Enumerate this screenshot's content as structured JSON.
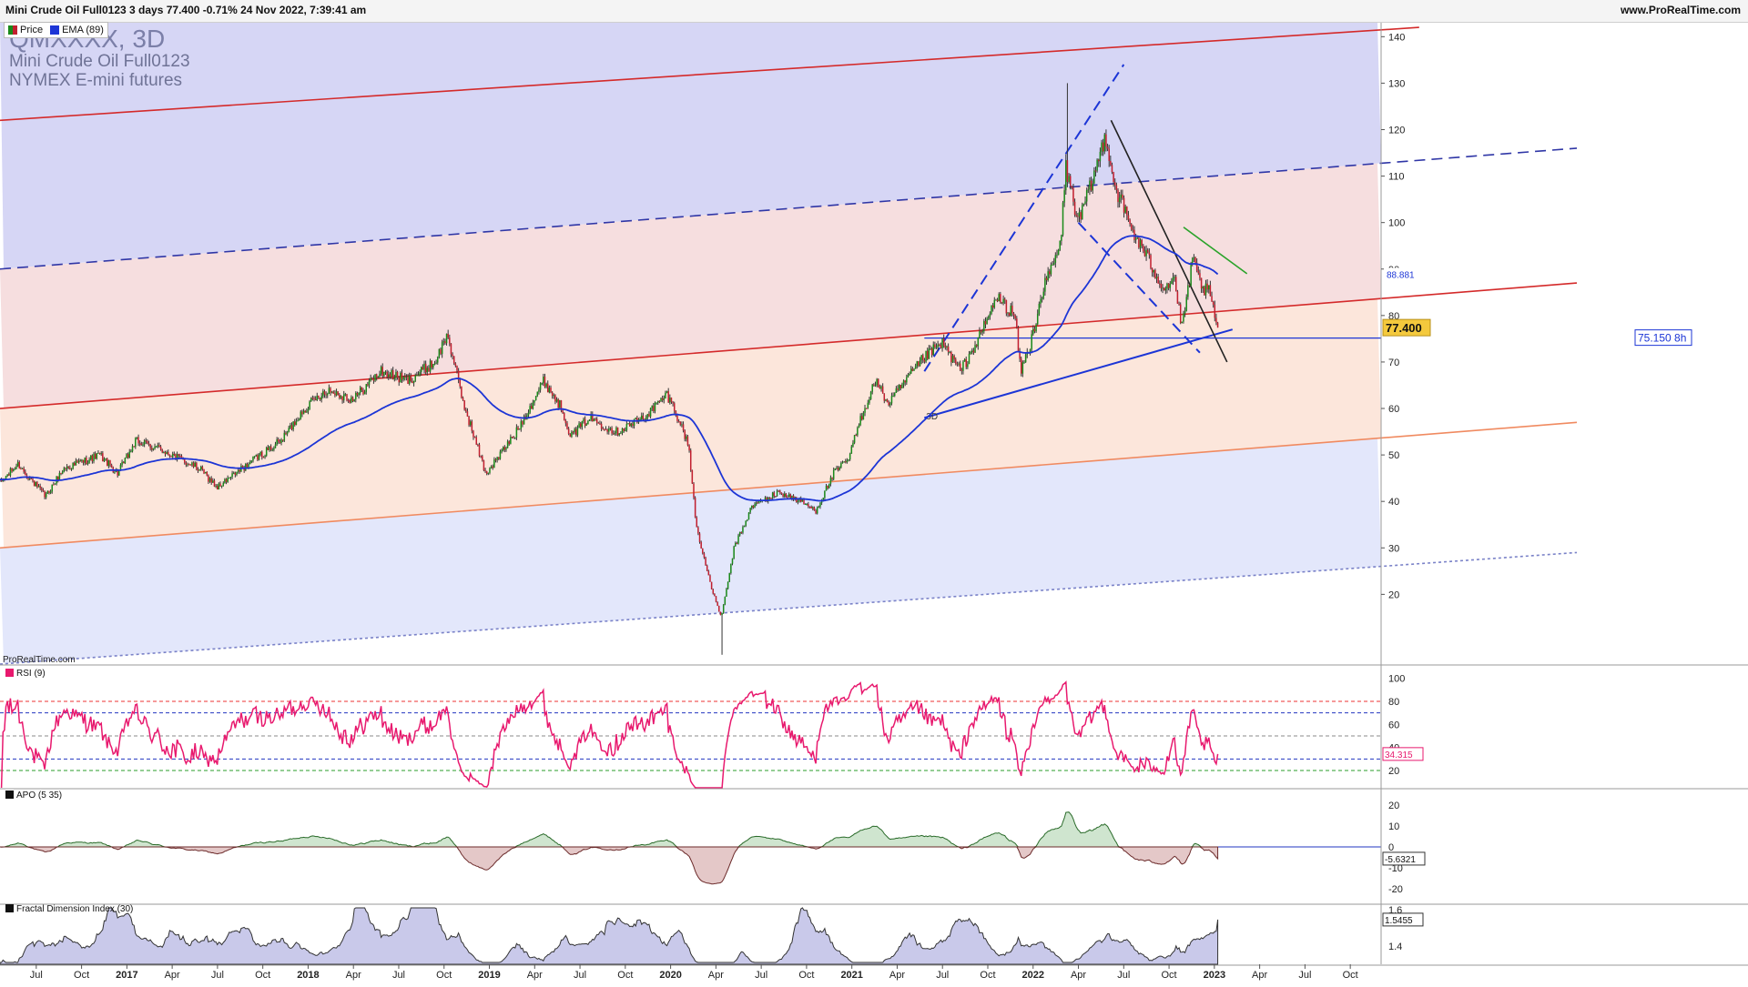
{
  "header": {
    "title": "Mini Crude Oil Full0123 3 days 77.400 -0.71% 24 Nov 2022, 7:39:41 am",
    "brand": "www.ProRealTime.com",
    "legend_price": "Price",
    "legend_ema": "EMA (89)"
  },
  "watermark": {
    "symbol": "QMXXXX, 3D",
    "name": "Mini Crude Oil Full0123",
    "exchange": "NYMEX E-mini futures",
    "source": "ProRealTime.com",
    "timeframe_tag": "3D"
  },
  "colors": {
    "price_up": "#1a8a1a",
    "price_down": "#c21f2f",
    "ema": "#1c35d6",
    "rsi": "#e8196e",
    "apo_up_fill": "#cfe5cf",
    "apo_down_fill": "#e4c8c8",
    "fdi_fill": "#c9c9ea",
    "channel_red": "#d42a2a",
    "channel_blue_dash": "#2f36a6",
    "band_top": "#d6d6f5",
    "band_pink": "#f6dedf",
    "band_peach": "#fce6db",
    "band_light_blue": "#e3e7fb"
  },
  "chart_data": [
    {
      "type": "candlestick",
      "panel": "price",
      "title": "Mini Crude Oil Full0123",
      "ylim": [
        5,
        143
      ],
      "y_ticks": [
        20,
        30,
        40,
        50,
        60,
        70,
        80,
        90,
        100,
        110,
        120,
        130,
        140
      ],
      "x_tick_labels": [
        "Jul",
        "Oct",
        "2017",
        "Apr",
        "Jul",
        "Oct",
        "2018",
        "Apr",
        "Jul",
        "Oct",
        "2019",
        "Apr",
        "Jul",
        "Oct",
        "2020",
        "Apr",
        "Jul",
        "Oct",
        "2021",
        "Apr",
        "Jul",
        "Oct",
        "2022",
        "Apr",
        "Jul",
        "Oct",
        "2023",
        "Apr",
        "Jul",
        "Oct"
      ],
      "x_tick_bold": [
        "2017",
        "2018",
        "2019",
        "2020",
        "2021",
        "2022",
        "2023"
      ],
      "x_ticks_t": [
        2016.5,
        2016.75,
        2017.0,
        2017.25,
        2017.5,
        2017.75,
        2018.0,
        2018.25,
        2018.5,
        2018.75,
        2019.0,
        2019.25,
        2019.5,
        2019.75,
        2020.0,
        2020.25,
        2020.5,
        2020.75,
        2021.0,
        2021.25,
        2021.5,
        2021.75,
        2022.0,
        2022.25,
        2022.5,
        2022.75,
        2023.0,
        2023.25,
        2023.5,
        2023.75
      ],
      "price_anchors": [
        [
          2016.3,
          44
        ],
        [
          2016.4,
          48
        ],
        [
          2016.55,
          41
        ],
        [
          2016.65,
          47
        ],
        [
          2016.85,
          50
        ],
        [
          2016.95,
          46
        ],
        [
          2017.05,
          53
        ],
        [
          2017.2,
          51
        ],
        [
          2017.4,
          47
        ],
        [
          2017.5,
          43
        ],
        [
          2017.7,
          49
        ],
        [
          2017.85,
          53
        ],
        [
          2017.98,
          60
        ],
        [
          2018.1,
          64
        ],
        [
          2018.25,
          62
        ],
        [
          2018.4,
          68
        ],
        [
          2018.55,
          66
        ],
        [
          2018.7,
          70
        ],
        [
          2018.77,
          76
        ],
        [
          2018.85,
          62
        ],
        [
          2018.98,
          46
        ],
        [
          2019.02,
          48
        ],
        [
          2019.15,
          55
        ],
        [
          2019.3,
          66
        ],
        [
          2019.4,
          60
        ],
        [
          2019.45,
          54
        ],
        [
          2019.55,
          58
        ],
        [
          2019.7,
          55
        ],
        [
          2019.85,
          58
        ],
        [
          2019.98,
          63
        ],
        [
          2020.02,
          60
        ],
        [
          2020.1,
          52
        ],
        [
          2020.14,
          35
        ],
        [
          2020.22,
          22
        ],
        [
          2020.28,
          15
        ],
        [
          2020.35,
          30
        ],
        [
          2020.45,
          39
        ],
        [
          2020.6,
          42
        ],
        [
          2020.72,
          40
        ],
        [
          2020.8,
          38
        ],
        [
          2020.9,
          46
        ],
        [
          2020.98,
          49
        ],
        [
          2021.05,
          58
        ],
        [
          2021.13,
          66
        ],
        [
          2021.2,
          61
        ],
        [
          2021.3,
          66
        ],
        [
          2021.4,
          71
        ],
        [
          2021.5,
          74
        ],
        [
          2021.6,
          68
        ],
        [
          2021.7,
          75
        ],
        [
          2021.8,
          84
        ],
        [
          2021.9,
          80
        ],
        [
          2021.93,
          68
        ],
        [
          2021.98,
          73
        ],
        [
          2022.05,
          85
        ],
        [
          2022.15,
          95
        ],
        [
          2022.18,
          112
        ],
        [
          2022.25,
          100
        ],
        [
          2022.32,
          108
        ],
        [
          2022.4,
          119
        ],
        [
          2022.45,
          108
        ],
        [
          2022.55,
          98
        ],
        [
          2022.65,
          91
        ],
        [
          2022.72,
          86
        ],
        [
          2022.78,
          88
        ],
        [
          2022.82,
          77
        ],
        [
          2022.88,
          92
        ],
        [
          2022.93,
          86
        ],
        [
          2022.97,
          85
        ],
        [
          2023.02,
          77.4
        ]
      ],
      "extreme_wicks": [
        [
          2022.19,
          130
        ],
        [
          2020.28,
          7
        ]
      ],
      "last_price": 77.4,
      "last_price_label": "77.400",
      "ema_label": "88.881",
      "ema_last": 88.881,
      "horizontal_level": 75.15,
      "horizontal_level_label": "75.150 8h",
      "trendlines": [
        {
          "name": "channel-upper",
          "from": [
            2016.3,
            122
          ],
          "to": [
            2024.13,
            142
          ],
          "style": "solid",
          "color": "#d42a2a"
        },
        {
          "name": "channel-mid-dashed",
          "from": [
            2016.3,
            90
          ],
          "to": [
            2025.0,
            116
          ],
          "style": "dashed",
          "color": "#2f36a6"
        },
        {
          "name": "channel-middle",
          "from": [
            2016.3,
            60
          ],
          "to": [
            2025.0,
            87
          ],
          "style": "solid",
          "color": "#d42a2a"
        },
        {
          "name": "channel-lower",
          "from": [
            2016.3,
            30
          ],
          "to": [
            2025.0,
            57
          ],
          "style": "solid",
          "color": "#f08a60"
        },
        {
          "name": "channel-bottom-dotted",
          "from": [
            2016.3,
            5
          ],
          "to": [
            2025.0,
            29
          ],
          "style": "dotted",
          "color": "#7a82c8"
        },
        {
          "name": "support-blue",
          "from": [
            2021.4,
            58
          ],
          "to": [
            2023.1,
            77
          ],
          "style": "solid",
          "color": "#1c35d6"
        },
        {
          "name": "pitch-dashed-up",
          "from": [
            2021.4,
            68
          ],
          "to": [
            2022.5,
            134
          ],
          "style": "dashed",
          "color": "#1c35d6"
        },
        {
          "name": "pitch-dashed-down",
          "from": [
            2022.25,
            100
          ],
          "to": [
            2022.92,
            72
          ],
          "style": "dashed",
          "color": "#1c35d6"
        },
        {
          "name": "downtrend-black",
          "from": [
            2022.43,
            122
          ],
          "to": [
            2023.07,
            70
          ],
          "style": "solid",
          "color": "#222222"
        },
        {
          "name": "downtrend-green",
          "from": [
            2022.83,
            99
          ],
          "to": [
            2023.18,
            89
          ],
          "style": "solid",
          "color": "#2aa32a"
        }
      ]
    },
    {
      "type": "line",
      "panel": "rsi",
      "title": "RSI (9)",
      "ylim": [
        5,
        110
      ],
      "y_ticks": [
        20,
        40,
        60,
        80,
        100
      ],
      "levels": [
        80,
        70,
        50,
        30,
        20
      ],
      "last_value": 34.315,
      "last_label": "34.315"
    },
    {
      "type": "area",
      "panel": "apo",
      "title": "APO (5 35)",
      "ylim": [
        -27,
        27
      ],
      "y_ticks": [
        -20,
        -10,
        0,
        10,
        20
      ],
      "last_value": -5.6321,
      "last_label": "-5.6321"
    },
    {
      "type": "area",
      "panel": "fdi",
      "title": "Fractal Dimension Index (30)",
      "ylim": [
        1.3,
        1.62
      ],
      "y_ticks": [
        1.4,
        1.6
      ],
      "last_value": 1.5455,
      "last_label": "1.5455"
    }
  ]
}
